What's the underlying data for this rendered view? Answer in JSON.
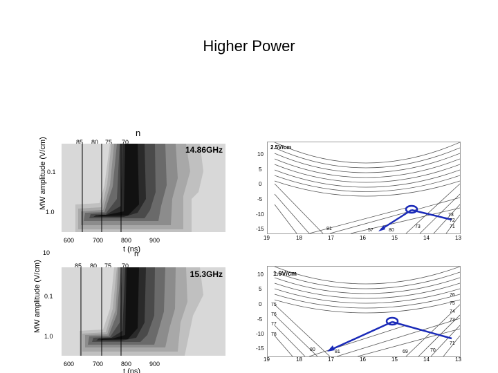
{
  "slide": {
    "title": "Higher Power"
  },
  "top": {
    "n_label": "n",
    "n_ticks": [
      "85",
      "80",
      "75",
      "70"
    ],
    "freq": "14.86GHz",
    "y_ticks": [
      "0.1",
      "1.0"
    ],
    "x_ticks": [
      "600",
      "700",
      "800",
      "900"
    ],
    "xlabel": "t (ns)",
    "ylabel": "MW amplitude (V/cm)",
    "field": "2.5V/cm",
    "diagram_y_ticks": [
      "10",
      "5",
      "0",
      "-5",
      "-10",
      "-15"
    ],
    "diagram_x_ticks": [
      "19",
      "18",
      "17",
      "16",
      "15",
      "14",
      "13"
    ],
    "diagram_extra": [
      "73",
      "72",
      "71",
      "81",
      "80",
      "57",
      "73"
    ]
  },
  "bottom": {
    "n_label": "n",
    "top_tick": "10",
    "n_ticks": [
      "85",
      "80",
      "75",
      "70"
    ],
    "freq": "15.3GHz",
    "y_ticks": [
      "0.1",
      "1.0"
    ],
    "x_ticks": [
      "600",
      "700",
      "800",
      "900"
    ],
    "xlabel": "t (ns)",
    "ylabel": "MW amplitude (V/cm)",
    "field": "1.9V/cm",
    "diagram_y_ticks": [
      "10",
      "5",
      "0",
      "-5",
      "-10",
      "-15"
    ],
    "diagram_x_ticks": [
      "19",
      "18",
      "17",
      "16",
      "15",
      "14",
      "13"
    ],
    "diagram_extra": [
      "75",
      "76",
      "77",
      "78",
      "80",
      "81",
      "69",
      "70",
      "73",
      "74",
      "75",
      "76",
      "71"
    ]
  }
}
